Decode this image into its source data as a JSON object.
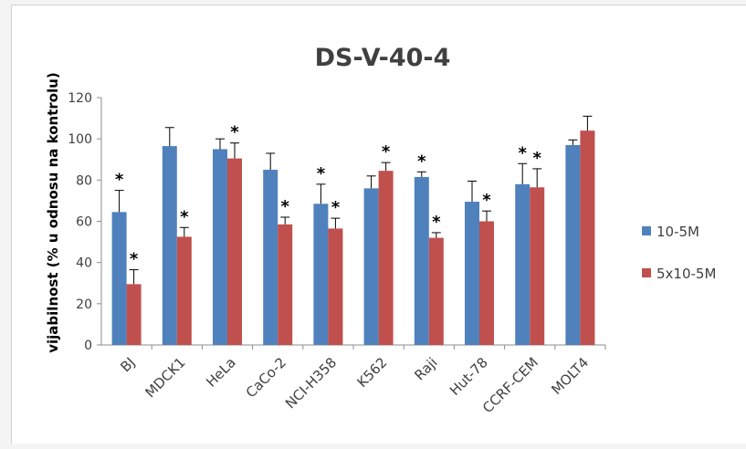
{
  "chart_data": {
    "type": "bar",
    "title": "DS-V-40-4",
    "xlabel": "",
    "ylabel": "vijabilnost (% u odnosu na kontrolu)",
    "ylim": [
      0,
      120
    ],
    "yticks": [
      0,
      20,
      40,
      60,
      80,
      100,
      120
    ],
    "grid": false,
    "legend_position": "right",
    "categories": [
      "BJ",
      "MDCK1",
      "HeLa",
      "CaCo-2",
      "NCI-H358",
      "K562",
      "Raji",
      "Hut-78",
      "CCRF-CEM",
      "MOLT4"
    ],
    "series": [
      {
        "name": "10-5M",
        "color": "#4f81bd",
        "values": [
          64.5,
          96.5,
          95,
          85,
          68.5,
          76,
          81.5,
          69.5,
          78,
          97
        ],
        "errors": [
          10.5,
          9,
          5,
          8,
          9.5,
          6,
          2.5,
          10,
          10,
          2.5
        ],
        "significant": [
          true,
          false,
          false,
          false,
          true,
          false,
          true,
          false,
          true,
          false
        ]
      },
      {
        "name": "5x10-5M",
        "color": "#c0504d",
        "values": [
          29.5,
          52.5,
          90.5,
          58.5,
          56.5,
          84.5,
          52,
          60,
          76.5,
          104
        ],
        "errors": [
          7,
          4.5,
          7.5,
          3.5,
          5,
          4,
          2.5,
          5,
          9,
          7
        ],
        "significant": [
          true,
          true,
          true,
          true,
          true,
          true,
          true,
          true,
          true,
          false
        ]
      }
    ],
    "significance_marker": "*"
  }
}
